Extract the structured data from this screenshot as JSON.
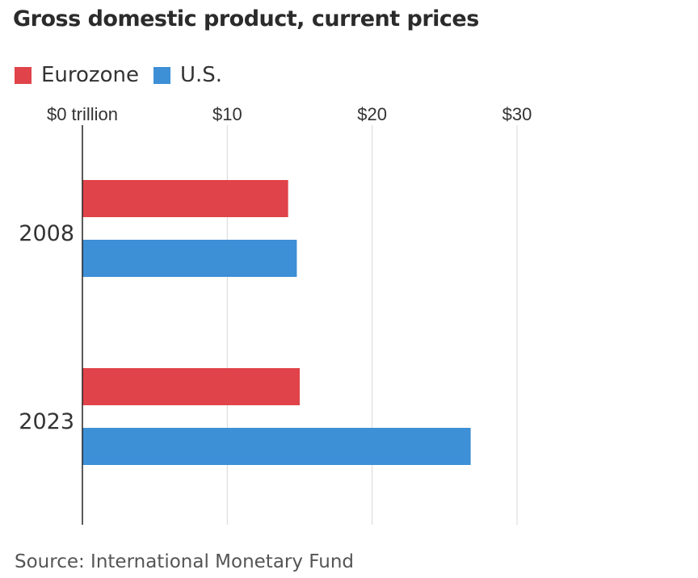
{
  "chart_data": {
    "type": "bar",
    "orientation": "horizontal",
    "title": "Gross domestic product, current prices",
    "categories": [
      "2008",
      "2023"
    ],
    "series": [
      {
        "name": "Eurozone",
        "color": "#e0434a",
        "values": [
          14.2,
          15.0
        ]
      },
      {
        "name": "U.S.",
        "color": "#3d8fd6",
        "values": [
          14.8,
          26.8
        ]
      }
    ],
    "xlabel": "",
    "ylabel": "",
    "xlim": [
      0,
      30
    ],
    "xticks": [
      0,
      10,
      20,
      30
    ],
    "xtick_labels": [
      "$0 trillion",
      "$10",
      "$20",
      "$30"
    ],
    "grid": true,
    "legend": "top-left",
    "source": "Source: International Monetary Fund"
  }
}
